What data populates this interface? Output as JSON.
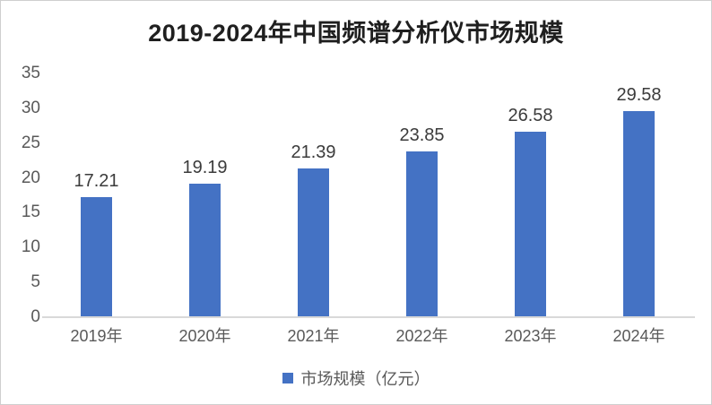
{
  "chart_data": {
    "type": "bar",
    "title": "2019-2024年中国频谱分析仪市场规模",
    "categories": [
      "2019年",
      "2020年",
      "2021年",
      "2022年",
      "2023年",
      "2024年"
    ],
    "values": [
      17.21,
      19.19,
      21.39,
      23.85,
      26.58,
      29.58
    ],
    "data_labels": [
      "17.21",
      "19.19",
      "21.39",
      "23.85",
      "26.58",
      "29.58"
    ],
    "series_name": "市场规模（亿元）",
    "xlabel": "",
    "ylabel": "",
    "ylim": [
      0,
      35
    ],
    "yticks": [
      0,
      5,
      10,
      15,
      20,
      25,
      30,
      35
    ],
    "grid": false,
    "legend_position": "bottom",
    "bar_color": "#4472C4",
    "axis_line_color": "#d9d9d9",
    "title_color": "#1f1f1f",
    "tick_label_color": "#595959",
    "data_label_color": "#3b3b3b"
  },
  "legend": {
    "label": "市场规模（亿元）"
  }
}
